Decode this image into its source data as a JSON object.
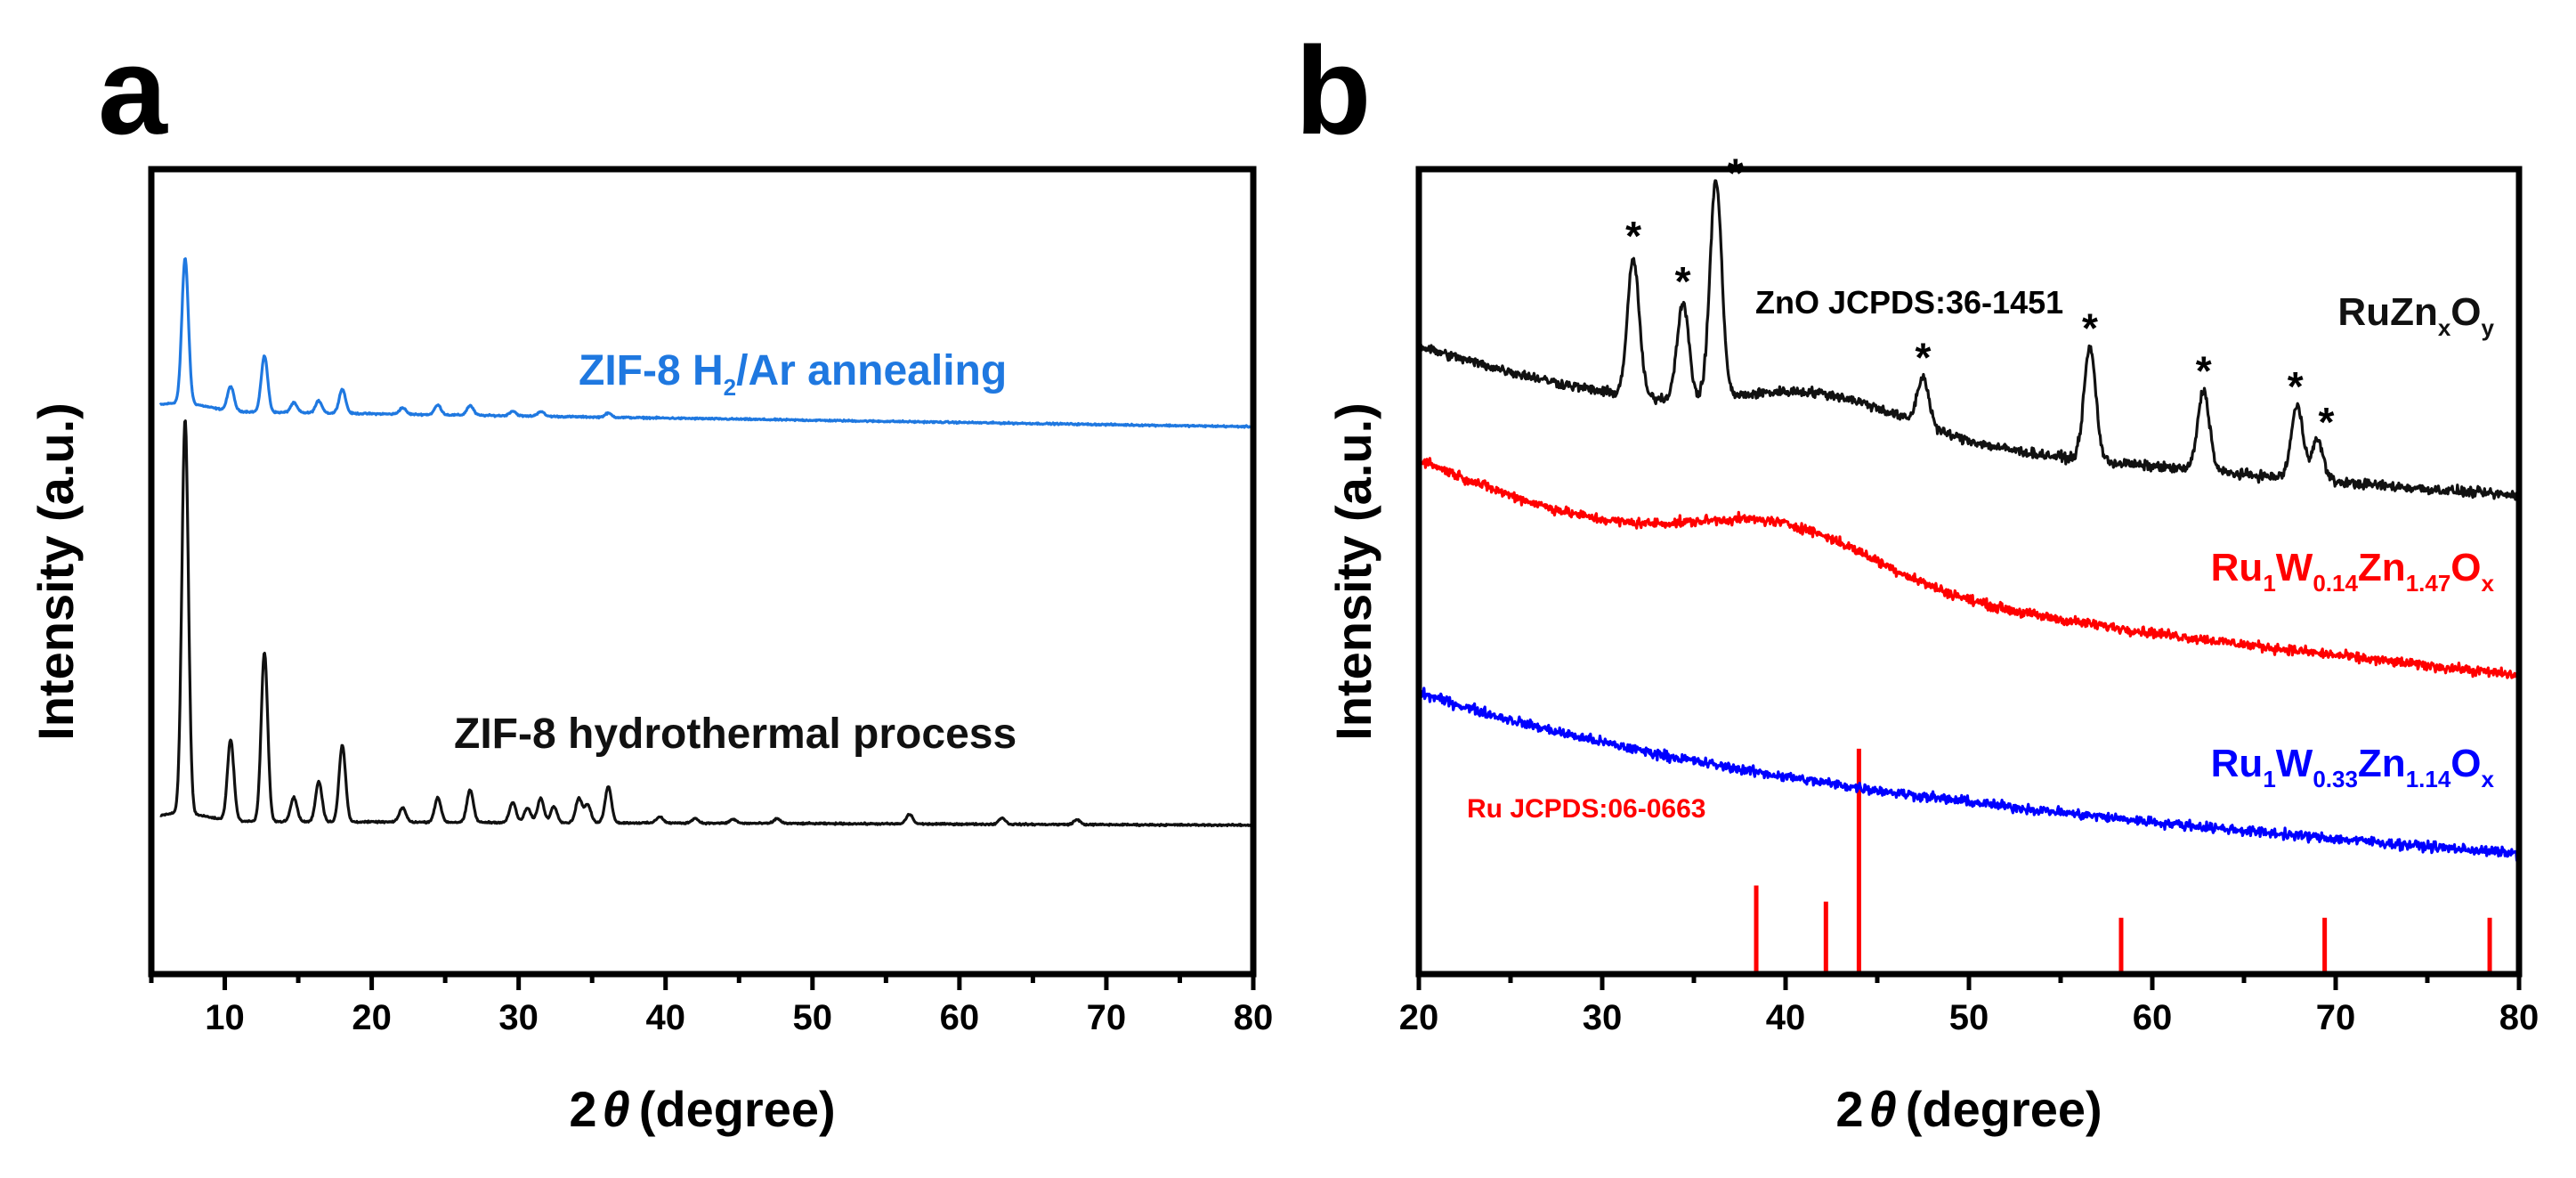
{
  "chart_data": [
    {
      "panel": "a",
      "type": "line",
      "xlabel": "2θ (degree)",
      "ylabel": "Intensity (a.u.)",
      "xlim": [
        5,
        80
      ],
      "xticks": [
        10,
        20,
        30,
        40,
        50,
        60,
        70,
        80
      ],
      "yticks_shown": false,
      "series": [
        {
          "id": "a_blue",
          "name": "ZIF-8 H2/Ar annealing",
          "label_main": "ZIF-8 H",
          "label_sub": "2",
          "label_tail": "/Ar annealing",
          "color": "#1f78e0",
          "baseline": 0.7,
          "end_level": 0.68,
          "peaks": [
            [
              7.3,
              0.18
            ],
            [
              10.4,
              0.03
            ],
            [
              12.7,
              0.07
            ],
            [
              14.7,
              0.012
            ],
            [
              16.4,
              0.015
            ],
            [
              18.0,
              0.03
            ],
            [
              22.1,
              0.008
            ],
            [
              24.5,
              0.012
            ],
            [
              26.7,
              0.012
            ],
            [
              29.6,
              0.006
            ],
            [
              31.5,
              0.006
            ],
            [
              36.1,
              0.005
            ]
          ]
        },
        {
          "id": "a_black",
          "name": "ZIF-8 hydrothermal process",
          "label_main": "ZIF-8 hydrothermal process",
          "color": "#111111",
          "baseline": 0.19,
          "end_level": 0.185,
          "peaks": [
            [
              7.3,
              0.49
            ],
            [
              10.4,
              0.1
            ],
            [
              12.7,
              0.21
            ],
            [
              14.7,
              0.03
            ],
            [
              16.4,
              0.05
            ],
            [
              18.0,
              0.095
            ],
            [
              22.1,
              0.018
            ],
            [
              24.5,
              0.03
            ],
            [
              26.7,
              0.04
            ],
            [
              29.6,
              0.025
            ],
            [
              30.6,
              0.018
            ],
            [
              31.5,
              0.03
            ],
            [
              32.4,
              0.02
            ],
            [
              34.1,
              0.03
            ],
            [
              34.7,
              0.022
            ],
            [
              36.1,
              0.045
            ],
            [
              39.6,
              0.008
            ],
            [
              42.0,
              0.006
            ],
            [
              44.6,
              0.005
            ],
            [
              47.6,
              0.006
            ],
            [
              56.6,
              0.012
            ],
            [
              62.9,
              0.008
            ],
            [
              68.0,
              0.006
            ]
          ]
        }
      ]
    },
    {
      "panel": "b",
      "type": "line",
      "xlabel": "2θ (degree)",
      "ylabel": "Intensity (a.u.)",
      "xlim": [
        20,
        80
      ],
      "xticks": [
        20,
        30,
        40,
        50,
        60,
        70,
        80
      ],
      "yticks_shown": false,
      "series": [
        {
          "id": "b_black",
          "name": "RuZnxOy",
          "label_parts": [
            [
              "RuZn",
              ""
            ],
            [
              "x",
              "sub"
            ],
            [
              "O",
              ""
            ],
            [
              "y",
              "sub"
            ]
          ],
          "color": "#111111",
          "start_level": 0.78,
          "end_level": 0.59,
          "hump": [
            42,
            0.045,
            4.5
          ],
          "peaks": [
            [
              31.7,
              0.17
            ],
            [
              34.4,
              0.12
            ],
            [
              36.2,
              0.27
            ],
            [
              47.5,
              0.06
            ],
            [
              56.6,
              0.14
            ],
            [
              62.8,
              0.1
            ],
            [
              67.9,
              0.09
            ],
            [
              69.0,
              0.05
            ]
          ]
        },
        {
          "id": "b_red",
          "name": "Ru1W0.14Zn1.47Ox",
          "label_parts": [
            [
              "Ru",
              ""
            ],
            [
              "1",
              "sub"
            ],
            [
              "W",
              ""
            ],
            [
              "0.14",
              "sub"
            ],
            [
              "Zn",
              ""
            ],
            [
              "1.47",
              "sub"
            ],
            [
              "O",
              ""
            ],
            [
              "x",
              "sub"
            ]
          ],
          "color": "#ff0000",
          "start_level": 0.64,
          "end_level": 0.365,
          "hump": [
            40,
            0.06,
            5.0
          ],
          "peaks": []
        },
        {
          "id": "b_blue",
          "name": "Ru1W0.33Zn1.14Ox",
          "label_parts": [
            [
              "Ru",
              ""
            ],
            [
              "1",
              "sub"
            ],
            [
              "W",
              ""
            ],
            [
              "0.33",
              "sub"
            ],
            [
              "Zn",
              ""
            ],
            [
              "1.14",
              "sub"
            ],
            [
              "O",
              ""
            ],
            [
              "x",
              "sub"
            ]
          ],
          "color": "#0000ff",
          "start_level": 0.35,
          "end_level": 0.145,
          "hump": [
            40,
            0.0,
            5.0
          ],
          "peaks": []
        }
      ],
      "reference": {
        "name": "Ru JCPDS:06-0663",
        "color": "#ff0000",
        "lines": [
          [
            38.4,
            0.11
          ],
          [
            42.2,
            0.09
          ],
          [
            44.0,
            0.28
          ],
          [
            58.3,
            0.07
          ],
          [
            69.4,
            0.07
          ],
          [
            78.4,
            0.07
          ]
        ]
      },
      "annotations": {
        "zno_label": "ZnO JCPDS:36-1451",
        "star": "*",
        "star_positions": [
          31.7,
          34.4,
          36.2,
          47.5,
          56.6,
          62.8,
          67.9,
          69.0
        ]
      }
    }
  ],
  "panels": {
    "a": {
      "letter": "a",
      "xlabel_num": "2",
      "xlabel_theta": "θ",
      "xlabel_rest": "(degree)",
      "ylabel": "Intensity (a.u.)"
    },
    "b": {
      "letter": "b",
      "xlabel_num": "2",
      "xlabel_theta": "θ",
      "xlabel_rest": "(degree)",
      "ylabel": "Intensity (a.u.)"
    }
  }
}
